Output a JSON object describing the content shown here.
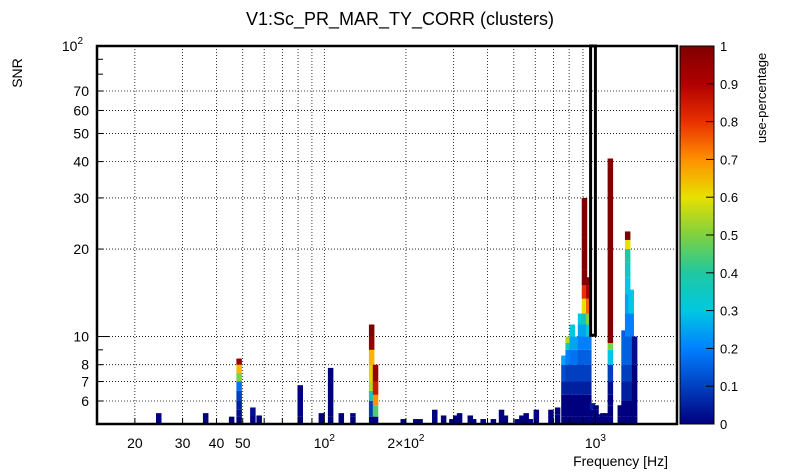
{
  "chart_data": {
    "type": "heatmap",
    "title": "V1:Sc_PR_MAR_TY_CORR (clusters)",
    "xlabel": "Frequency [Hz]",
    "ylabel": "SNR",
    "zlabel": "use-percentage",
    "x_scale": "log",
    "y_scale": "log",
    "xlim": [
      14.5,
      2000
    ],
    "ylim": [
      5,
      100
    ],
    "zlim": [
      0,
      1
    ],
    "grid": true,
    "x_ticks": [
      {
        "value": 20,
        "label": "20"
      },
      {
        "value": 30,
        "label": "30"
      },
      {
        "value": 40,
        "label": "40"
      },
      {
        "value": 50,
        "label": "50"
      },
      {
        "value": 100,
        "label": "10",
        "sup": "2"
      },
      {
        "value": 200,
        "label": "2×10",
        "sup": "2"
      },
      {
        "value": 1000,
        "label": "10",
        "sup": "3"
      }
    ],
    "y_ticks": [
      {
        "value": 6,
        "label": "6"
      },
      {
        "value": 7,
        "label": "7"
      },
      {
        "value": 8,
        "label": "8"
      },
      {
        "value": 10,
        "label": "10"
      },
      {
        "value": 20,
        "label": "20"
      },
      {
        "value": 30,
        "label": "30"
      },
      {
        "value": 40,
        "label": "40"
      },
      {
        "value": 50,
        "label": "50"
      },
      {
        "value": 60,
        "label": "60"
      },
      {
        "value": 70,
        "label": "70"
      },
      {
        "value": 100,
        "label": "10",
        "sup": "2"
      }
    ],
    "colorbar_ticks": [
      "0",
      "0.1",
      "0.2",
      "0.3",
      "0.4",
      "0.5",
      "0.6",
      "0.7",
      "0.8",
      "0.9",
      "1"
    ],
    "colormap": [
      "#00007f",
      "#0040c0",
      "#0080ff",
      "#00c8e0",
      "#20c8a0",
      "#80d040",
      "#e8e000",
      "#ff9000",
      "#e83000",
      "#b00000",
      "#800000"
    ],
    "highlight": {
      "f_low": 960,
      "f_high": 1000,
      "y_low": 10.1,
      "y_high": 100
    },
    "columns": [
      {
        "f": 24.5,
        "cells": [
          [
            5.45,
            0.0
          ]
        ]
      },
      {
        "f": 36.5,
        "cells": [
          [
            5.45,
            0.0
          ]
        ]
      },
      {
        "f": 45.5,
        "cells": [
          [
            5.3,
            0.0
          ]
        ]
      },
      {
        "f": 48.5,
        "cells": [
          [
            5.3,
            0.0
          ],
          [
            5.6,
            0.02
          ],
          [
            6.0,
            0.05
          ],
          [
            6.5,
            0.1
          ],
          [
            7.0,
            0.18
          ],
          [
            7.5,
            0.5
          ],
          [
            8.0,
            0.65
          ],
          [
            8.4,
            0.95
          ]
        ]
      },
      {
        "f": 54.5,
        "cells": [
          [
            5.35,
            0.0
          ],
          [
            5.7,
            0.02
          ]
        ]
      },
      {
        "f": 57.5,
        "cells": [
          [
            5.35,
            0.0
          ]
        ]
      },
      {
        "f": 81.5,
        "cells": [
          [
            5.3,
            0.0
          ],
          [
            6.8,
            0.0
          ]
        ]
      },
      {
        "f": 97.5,
        "cells": [
          [
            5.45,
            0.0
          ]
        ]
      },
      {
        "f": 105.5,
        "cells": [
          [
            5.3,
            0.0
          ],
          [
            7.8,
            0.0
          ]
        ]
      },
      {
        "f": 115.5,
        "cells": [
          [
            5.45,
            0.0
          ]
        ]
      },
      {
        "f": 127.5,
        "cells": [
          [
            5.3,
            0.0
          ],
          [
            5.45,
            0.0
          ]
        ]
      },
      {
        "f": 149.5,
        "cells": [
          [
            5.3,
            0.0
          ],
          [
            6.0,
            0.1
          ],
          [
            6.5,
            0.35
          ],
          [
            7.0,
            0.55
          ],
          [
            8.0,
            0.62
          ],
          [
            9.0,
            0.65
          ],
          [
            10.0,
            0.95
          ],
          [
            11.0,
            1.0
          ]
        ]
      },
      {
        "f": 154.5,
        "cells": [
          [
            5.3,
            0.0
          ],
          [
            5.8,
            0.45
          ],
          [
            6.3,
            0.7
          ],
          [
            7.0,
            0.85
          ],
          [
            8.0,
            0.95
          ]
        ]
      },
      {
        "f": 195.5,
        "cells": [
          [
            5.2,
            0.0
          ]
        ]
      },
      {
        "f": 217.5,
        "cells": [
          [
            5.2,
            0.0
          ]
        ]
      },
      {
        "f": 225.5,
        "cells": [
          [
            5.2,
            0.0
          ]
        ]
      },
      {
        "f": 255.5,
        "cells": [
          [
            5.6,
            0.0
          ]
        ]
      },
      {
        "f": 275.5,
        "cells": [
          [
            5.35,
            0.0
          ]
        ]
      },
      {
        "f": 295.5,
        "cells": [
          [
            5.2,
            0.0
          ]
        ]
      },
      {
        "f": 305.5,
        "cells": [
          [
            5.35,
            0.0
          ]
        ]
      },
      {
        "f": 315.5,
        "cells": [
          [
            5.45,
            0.0
          ]
        ]
      },
      {
        "f": 345.5,
        "cells": [
          [
            5.35,
            0.0
          ]
        ]
      },
      {
        "f": 355.5,
        "cells": [
          [
            5.2,
            0.0
          ]
        ]
      },
      {
        "f": 385.5,
        "cells": [
          [
            5.2,
            0.0
          ]
        ]
      },
      {
        "f": 420.5,
        "cells": [
          [
            5.2,
            0.0
          ]
        ]
      },
      {
        "f": 450.5,
        "cells": [
          [
            5.6,
            0.0
          ]
        ]
      },
      {
        "f": 465.5,
        "cells": [
          [
            5.35,
            0.0
          ]
        ]
      },
      {
        "f": 515.5,
        "cells": [
          [
            5.2,
            0.0
          ]
        ]
      },
      {
        "f": 535.5,
        "cells": [
          [
            5.35,
            0.0
          ]
        ]
      },
      {
        "f": 555.5,
        "cells": [
          [
            5.45,
            0.0
          ]
        ]
      },
      {
        "f": 575.5,
        "cells": [
          [
            5.2,
            0.0
          ]
        ]
      },
      {
        "f": 605.5,
        "cells": [
          [
            5.6,
            0.0
          ]
        ]
      },
      {
        "f": 685.5,
        "cells": [
          [
            5.35,
            0.0
          ],
          [
            5.6,
            0.0
          ]
        ]
      },
      {
        "f": 725.5,
        "cells": [
          [
            5.4,
            0.0
          ],
          [
            5.7,
            0.0
          ]
        ]
      },
      {
        "f": 765.5,
        "cells": [
          [
            5.3,
            0.0
          ],
          [
            6.3,
            0.0
          ],
          [
            7.0,
            0.05
          ],
          [
            8.0,
            0.12
          ],
          [
            8.6,
            0.25
          ]
        ]
      },
      {
        "f": 793.5,
        "cells": [
          [
            5.3,
            0.0
          ],
          [
            6.3,
            0.0
          ],
          [
            7.0,
            0.05
          ],
          [
            8.0,
            0.1
          ],
          [
            9.0,
            0.2
          ],
          [
            9.5,
            0.35
          ],
          [
            10.0,
            0.55
          ]
        ]
      },
      {
        "f": 821.5,
        "cells": [
          [
            5.3,
            0.0
          ],
          [
            6.3,
            0.0
          ],
          [
            7.0,
            0.05
          ],
          [
            8.0,
            0.1
          ],
          [
            9.0,
            0.18
          ],
          [
            10.0,
            0.25
          ],
          [
            11.0,
            0.3
          ]
        ]
      },
      {
        "f": 851.5,
        "cells": [
          [
            5.3,
            0.0
          ],
          [
            6.3,
            0.0
          ],
          [
            7.0,
            0.05
          ],
          [
            8.0,
            0.1
          ],
          [
            9.0,
            0.18
          ],
          [
            10.0,
            0.25
          ]
        ]
      },
      {
        "f": 881.5,
        "cells": [
          [
            5.3,
            0.0
          ],
          [
            6.3,
            0.0
          ],
          [
            7.0,
            0.05
          ],
          [
            8.0,
            0.1
          ],
          [
            9.0,
            0.15
          ],
          [
            10.0,
            0.2
          ],
          [
            11.0,
            0.25
          ],
          [
            12.0,
            0.3
          ]
        ]
      },
      {
        "f": 911.5,
        "cells": [
          [
            5.3,
            0.0
          ],
          [
            6.3,
            0.0
          ],
          [
            7.0,
            0.05
          ],
          [
            8.0,
            0.1
          ],
          [
            9.0,
            0.15
          ],
          [
            10.0,
            0.2
          ],
          [
            11.0,
            0.25
          ],
          [
            12.0,
            0.35
          ],
          [
            13.5,
            0.6
          ],
          [
            15.0,
            0.8
          ],
          [
            17.0,
            1.0
          ],
          [
            22.0,
            1.0
          ],
          [
            30.0,
            1.0
          ]
        ]
      },
      {
        "f": 945.5,
        "cells": [
          [
            5.3,
            0.0
          ],
          [
            6.3,
            0.0
          ],
          [
            7.0,
            0.05
          ],
          [
            8.0,
            0.1
          ],
          [
            9.0,
            0.15
          ],
          [
            10.0,
            0.2
          ],
          [
            11.0,
            0.3
          ],
          [
            12.0,
            0.5
          ],
          [
            13.5,
            0.75
          ],
          [
            15.0,
            0.9
          ],
          [
            16.0,
            1.0
          ]
        ]
      },
      {
        "f": 975.5,
        "cells": [
          [
            5.3,
            0.0
          ],
          [
            5.6,
            0.0
          ],
          [
            5.9,
            0.05
          ]
        ]
      },
      {
        "f": 1005.5,
        "cells": [
          [
            5.3,
            0.0
          ],
          [
            5.6,
            0.0
          ],
          [
            5.8,
            0.0
          ]
        ]
      },
      {
        "f": 1035.5,
        "cells": [
          [
            5.3,
            0.0
          ],
          [
            5.4,
            0.0
          ]
        ]
      },
      {
        "f": 1065.5,
        "cells": [
          [
            5.3,
            0.0
          ],
          [
            5.45,
            0.0
          ]
        ]
      },
      {
        "f": 1095.5,
        "cells": [
          [
            5.3,
            0.0
          ],
          [
            5.45,
            0.0
          ]
        ]
      },
      {
        "f": 1135.5,
        "cells": [
          [
            5.3,
            0.0
          ],
          [
            5.8,
            0.0
          ],
          [
            6.3,
            0.0
          ],
          [
            7.0,
            0.02
          ],
          [
            8.0,
            0.1
          ],
          [
            9.0,
            0.3
          ],
          [
            9.5,
            0.5
          ],
          [
            10.0,
            1.0
          ],
          [
            20.0,
            1.0
          ],
          [
            41.0,
            1.0
          ]
        ]
      },
      {
        "f": 1235.5,
        "cells": [
          [
            5.3,
            0.0
          ],
          [
            5.8,
            0.0
          ]
        ]
      },
      {
        "f": 1275.5,
        "cells": [
          [
            5.3,
            0.0
          ],
          [
            6.0,
            0.0
          ],
          [
            7.0,
            0.05
          ],
          [
            8.0,
            0.1
          ],
          [
            10.5,
            0.15
          ]
        ]
      },
      {
        "f": 1315.5,
        "cells": [
          [
            5.3,
            0.0
          ],
          [
            6.0,
            0.0
          ],
          [
            7.0,
            0.05
          ],
          [
            8.0,
            0.1
          ],
          [
            10.0,
            0.15
          ],
          [
            12.0,
            0.2
          ],
          [
            14.0,
            0.25
          ],
          [
            16.0,
            0.3
          ],
          [
            18.0,
            0.35
          ],
          [
            20.0,
            0.4
          ],
          [
            21.5,
            0.6
          ],
          [
            23.0,
            1.0
          ]
        ]
      },
      {
        "f": 1355.5,
        "cells": [
          [
            5.3,
            0.0
          ],
          [
            6.0,
            0.0
          ],
          [
            7.0,
            0.05
          ],
          [
            8.0,
            0.1
          ],
          [
            10.0,
            0.15
          ],
          [
            12.0,
            0.2
          ],
          [
            14.5,
            0.3
          ]
        ]
      },
      {
        "f": 1395.5,
        "cells": [
          [
            5.3,
            0.0
          ],
          [
            6.0,
            0.0
          ],
          [
            8.0,
            0.0
          ],
          [
            10.0,
            0.02
          ]
        ]
      }
    ]
  }
}
